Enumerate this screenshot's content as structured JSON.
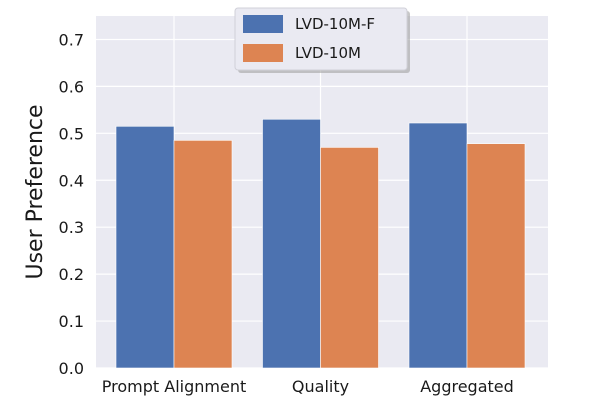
{
  "chart_data": {
    "type": "bar",
    "title": "",
    "xlabel": "",
    "ylabel": "User Preference",
    "categories": [
      "Prompt Alignment",
      "Quality",
      "Aggregated"
    ],
    "series": [
      {
        "name": "LVD-10M-F",
        "values": [
          0.515,
          0.53,
          0.522
        ],
        "color": "#4c72b0"
      },
      {
        "name": "LVD-10M",
        "values": [
          0.485,
          0.47,
          0.478
        ],
        "color": "#dd8452"
      }
    ],
    "ylim": [
      0.0,
      0.75
    ],
    "yticks": [
      "0.0",
      "0.1",
      "0.2",
      "0.3",
      "0.4",
      "0.5",
      "0.6",
      "0.7"
    ],
    "grid": true,
    "legend_position": "top-center",
    "background": "#eaeaf2"
  }
}
